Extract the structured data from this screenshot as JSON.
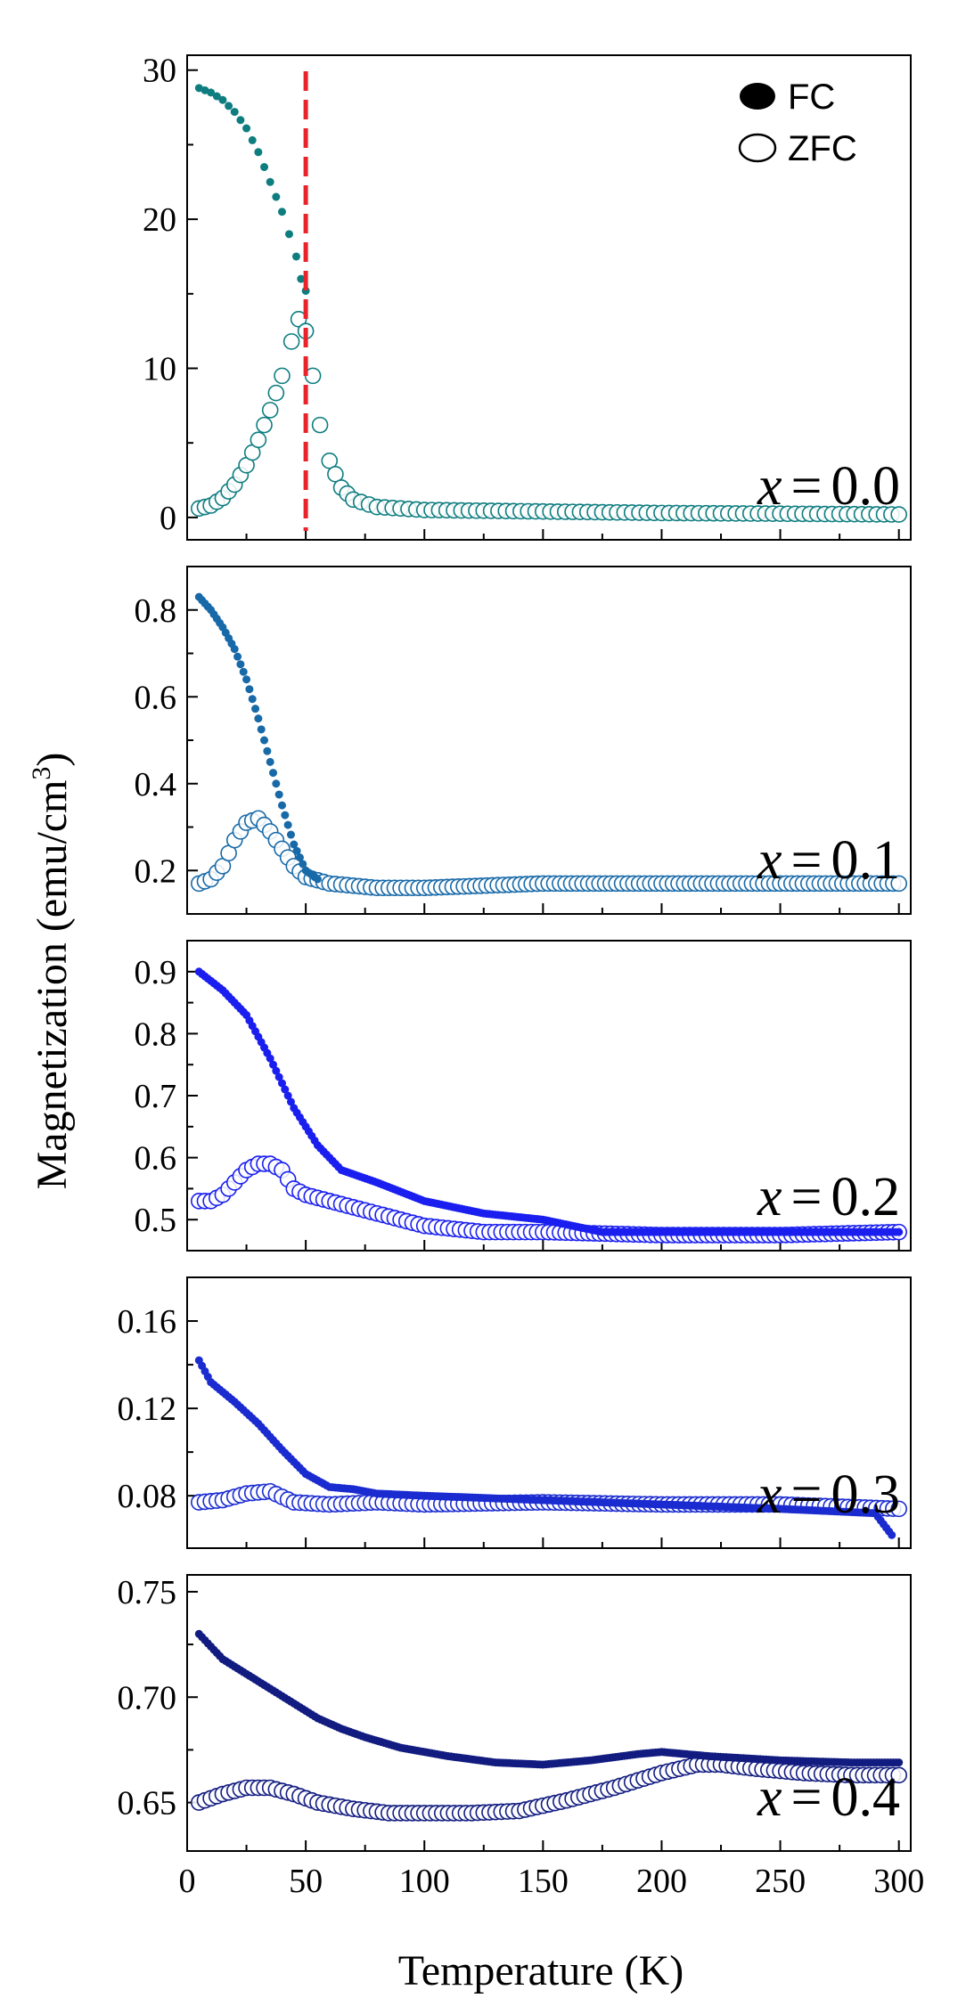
{
  "chart_data": {
    "type": "scatter",
    "title": "",
    "xlabel": "Temperature (K)",
    "ylabel_main": "Magnetization (emu/cm",
    "ylabel_sup": "3",
    "ylabel_close": ")",
    "xlim": [
      0,
      305
    ],
    "xticks": [
      0,
      50,
      100,
      150,
      200,
      250,
      300
    ],
    "xtick_labels": [
      "0",
      "50",
      "100",
      "150",
      "200",
      "250",
      "300"
    ],
    "legend": {
      "placement": "top-right",
      "fc_label": "FC",
      "zfc_label": "ZFC"
    },
    "transition_marker": {
      "x": 50,
      "color": "#e8232a",
      "style": "dashed"
    },
    "panels": [
      {
        "label": "x = 0.0",
        "x_var": "x",
        "eq": "=",
        "value": "0.0",
        "color": "#0e7d80",
        "ylim": [
          -1.5,
          31
        ],
        "yticks": [
          0,
          10,
          20,
          30
        ],
        "ytick_labels": [
          "0",
          "10",
          "20",
          "30"
        ],
        "series": [
          {
            "name": "FC",
            "marker": "filled",
            "x": [
              5,
              10,
              15,
              20,
              25,
              30,
              35,
              40,
              43,
              46,
              48,
              50
            ],
            "y": [
              28.8,
              28.5,
              28.0,
              27.2,
              26.1,
              24.5,
              22.5,
              20.5,
              19.0,
              17.5,
              16.0,
              15.2
            ]
          },
          {
            "name": "ZFC",
            "marker": "open",
            "x": [
              5,
              10,
              15,
              20,
              25,
              30,
              35,
              40,
              44,
              47,
              50,
              53,
              56,
              60,
              65,
              70,
              80,
              100,
              150,
              200,
              250,
              300
            ],
            "y": [
              0.6,
              0.8,
              1.3,
              2.2,
              3.5,
              5.2,
              7.2,
              9.5,
              11.8,
              13.3,
              12.5,
              9.5,
              6.2,
              3.8,
              2.0,
              1.2,
              0.7,
              0.5,
              0.4,
              0.3,
              0.25,
              0.2
            ]
          }
        ]
      },
      {
        "label": "x = 0.1",
        "x_var": "x",
        "eq": "=",
        "value": "0.1",
        "color": "#1769a8",
        "ylim": [
          0.1,
          0.9
        ],
        "yticks": [
          0.2,
          0.4,
          0.6,
          0.8
        ],
        "ytick_labels": [
          "0.2",
          "0.4",
          "0.6",
          "0.8"
        ],
        "series": [
          {
            "name": "FC",
            "marker": "filled",
            "x": [
              5,
              10,
              15,
              20,
              25,
              30,
              35,
              40,
              45,
              50,
              55
            ],
            "y": [
              0.83,
              0.8,
              0.76,
              0.71,
              0.64,
              0.55,
              0.45,
              0.35,
              0.26,
              0.2,
              0.18
            ]
          },
          {
            "name": "ZFC",
            "marker": "open",
            "x": [
              5,
              10,
              15,
              20,
              25,
              30,
              35,
              40,
              45,
              50,
              60,
              80,
              100,
              150,
              200,
              250,
              300
            ],
            "y": [
              0.17,
              0.18,
              0.21,
              0.27,
              0.31,
              0.32,
              0.29,
              0.25,
              0.21,
              0.185,
              0.17,
              0.16,
              0.16,
              0.17,
              0.17,
              0.17,
              0.17
            ]
          }
        ]
      },
      {
        "label": "x = 0.2",
        "x_var": "x",
        "eq": "=",
        "value": "0.2",
        "color": "#1a1fef",
        "ylim": [
          0.45,
          0.95
        ],
        "yticks": [
          0.5,
          0.6,
          0.7,
          0.8,
          0.9
        ],
        "ytick_labels": [
          "0.5",
          "0.6",
          "0.7",
          "0.8",
          "0.9"
        ],
        "series": [
          {
            "name": "FC",
            "marker": "filled",
            "x": [
              5,
              15,
              25,
              35,
              45,
              55,
              65,
              80,
              100,
              125,
              150,
              175,
              200,
              250,
              300
            ],
            "y": [
              0.9,
              0.87,
              0.83,
              0.76,
              0.68,
              0.62,
              0.58,
              0.56,
              0.53,
              0.51,
              0.5,
              0.48,
              0.48,
              0.48,
              0.48
            ]
          },
          {
            "name": "ZFC",
            "marker": "open",
            "x": [
              5,
              10,
              15,
              20,
              25,
              30,
              35,
              40,
              45,
              50,
              60,
              70,
              80,
              100,
              125,
              150,
              200,
              250,
              300
            ],
            "y": [
              0.53,
              0.53,
              0.54,
              0.56,
              0.58,
              0.59,
              0.59,
              0.58,
              0.55,
              0.54,
              0.53,
              0.52,
              0.51,
              0.49,
              0.48,
              0.48,
              0.475,
              0.475,
              0.48
            ]
          }
        ]
      },
      {
        "label": "x = 0.3",
        "x_var": "x",
        "eq": "=",
        "value": "0.3",
        "color": "#1a2bd0",
        "ylim": [
          0.056,
          0.18
        ],
        "yticks": [
          0.08,
          0.12,
          0.16
        ],
        "ytick_labels": [
          "0.08",
          "0.12",
          "0.16"
        ],
        "series": [
          {
            "name": "FC",
            "marker": "filled",
            "x": [
              5,
              10,
              20,
              30,
              40,
              50,
              60,
              70,
              80,
              100,
              150,
              200,
              250,
              290,
              297
            ],
            "y": [
              0.142,
              0.132,
              0.123,
              0.113,
              0.101,
              0.09,
              0.084,
              0.083,
              0.081,
              0.08,
              0.078,
              0.076,
              0.074,
              0.072,
              0.062
            ]
          },
          {
            "name": "ZFC",
            "marker": "open",
            "x": [
              5,
              15,
              25,
              35,
              45,
              60,
              80,
              100,
              150,
              200,
              250,
              300
            ],
            "y": [
              0.077,
              0.078,
              0.081,
              0.082,
              0.077,
              0.076,
              0.077,
              0.076,
              0.077,
              0.076,
              0.076,
              0.074
            ]
          }
        ]
      },
      {
        "label": "x = 0.4",
        "x_var": "x",
        "eq": "=",
        "value": "0.4",
        "color": "#121c80",
        "ylim": [
          0.627,
          0.758
        ],
        "yticks": [
          0.65,
          0.7,
          0.75
        ],
        "ytick_labels": [
          "0.65",
          "0.70",
          "0.75"
        ],
        "series": [
          {
            "name": "FC",
            "marker": "filled",
            "x": [
              5,
              15,
              25,
              35,
              45,
              55,
              65,
              75,
              90,
              110,
              130,
              150,
              170,
              190,
              200,
              220,
              250,
              280,
              300
            ],
            "y": [
              0.73,
              0.718,
              0.711,
              0.704,
              0.697,
              0.69,
              0.685,
              0.681,
              0.676,
              0.672,
              0.669,
              0.668,
              0.67,
              0.673,
              0.674,
              0.672,
              0.67,
              0.669,
              0.669
            ]
          },
          {
            "name": "ZFC",
            "marker": "open",
            "x": [
              5,
              15,
              25,
              35,
              45,
              55,
              70,
              85,
              100,
              120,
              140,
              160,
              180,
              200,
              215,
              225,
              240,
              260,
              280,
              300
            ],
            "y": [
              0.65,
              0.654,
              0.657,
              0.657,
              0.654,
              0.65,
              0.647,
              0.645,
              0.645,
              0.645,
              0.646,
              0.651,
              0.657,
              0.664,
              0.668,
              0.668,
              0.666,
              0.664,
              0.663,
              0.663
            ]
          }
        ]
      }
    ]
  }
}
